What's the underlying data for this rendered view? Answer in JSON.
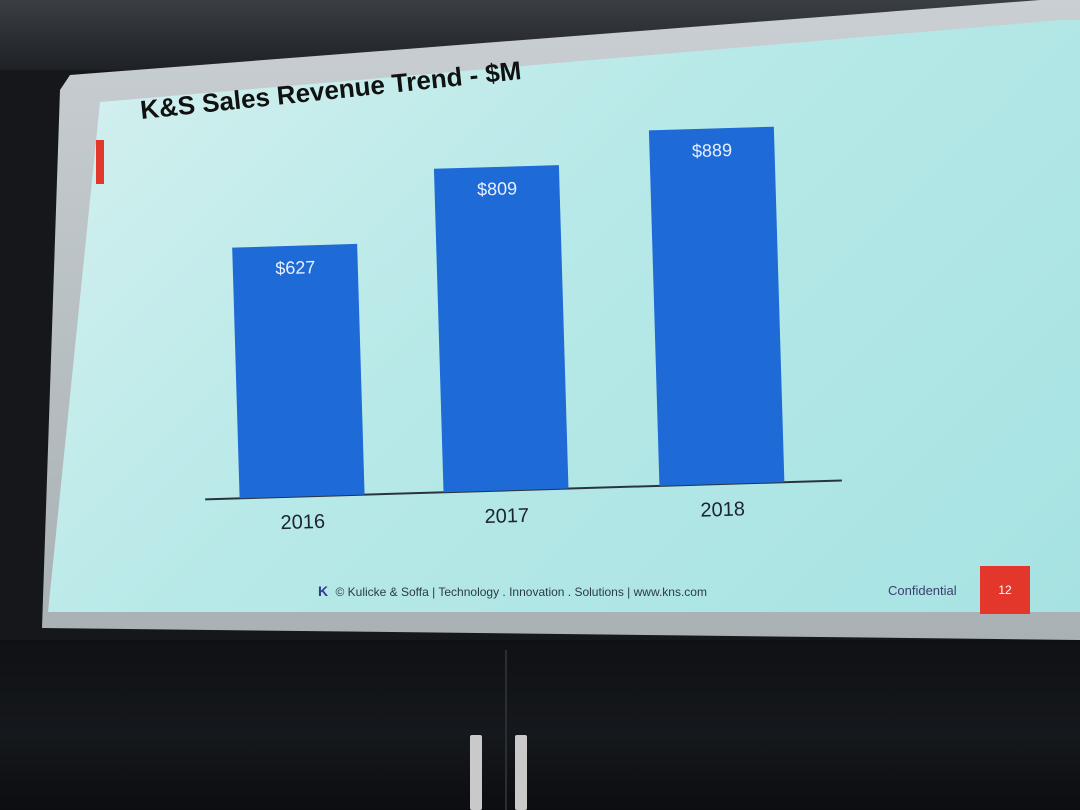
{
  "slide": {
    "title": "K&S Sales Revenue Trend - $M",
    "footer_logo": "K",
    "footer_text": "© Kulicke & Soffa | Technology . Innovation . Solutions | www.kns.com",
    "confidential": "Confidential",
    "page_number": "12"
  },
  "colors": {
    "bar": "#1e6ad6",
    "accent": "#e2372a",
    "slide_background": "#b7e9e8"
  },
  "chart_data": {
    "type": "bar",
    "title": "K&S Sales Revenue Trend - $M",
    "categories": [
      "2016",
      "2017",
      "2018"
    ],
    "values": [
      627,
      809,
      889
    ],
    "data_labels": [
      "$627",
      "$809",
      "$889"
    ],
    "ylim": [
      0,
      1000
    ],
    "grid": false
  }
}
